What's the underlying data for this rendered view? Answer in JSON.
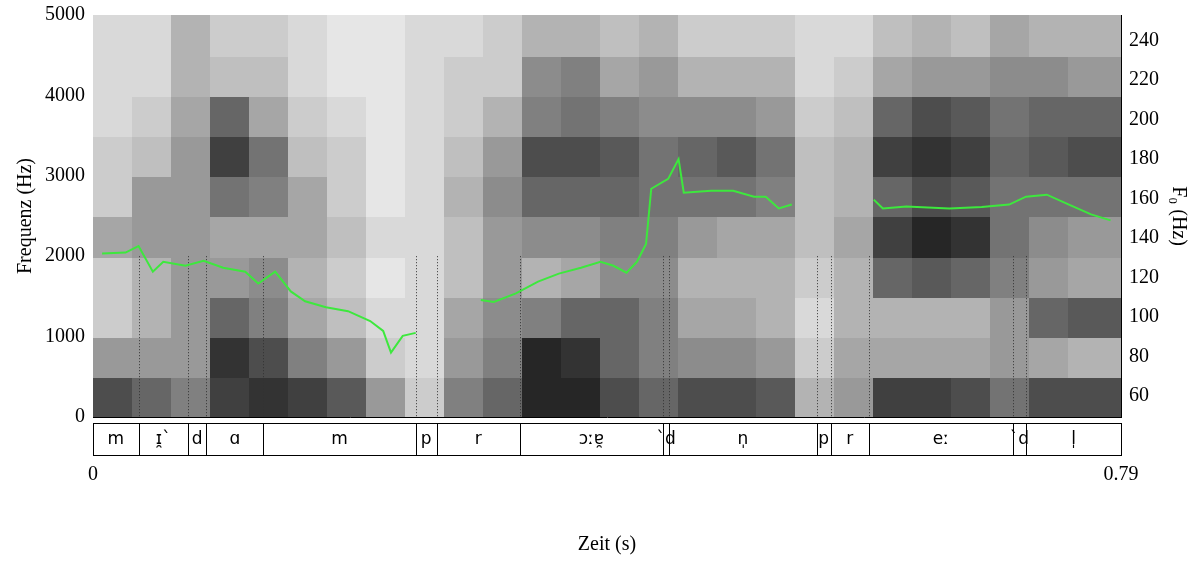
{
  "chart_data": {
    "type": "line",
    "x_label": "Zeit (s)",
    "y_label": "Frequenz (Hz)",
    "y2_label": "F₀ (Hz)",
    "xlim": [
      0,
      0.79
    ],
    "xticks": [
      0,
      0.79
    ],
    "ylim": [
      0,
      5000
    ],
    "yticks": [
      0,
      1000,
      2000,
      3000,
      4000,
      5000
    ],
    "y2lim": [
      49.4,
      253
    ],
    "y2ticks": [
      60,
      80,
      100,
      120,
      140,
      160,
      180,
      200,
      220,
      240
    ],
    "grid": false,
    "x": [
      0.007,
      0.025,
      0.035,
      0.046,
      0.054,
      0.071,
      0.085,
      0.1,
      0.117,
      0.127,
      0.14,
      0.152,
      0.163,
      0.179,
      0.196,
      0.213,
      0.223,
      0.229,
      0.238,
      0.248,
      0.27,
      0.298,
      0.308,
      0.325,
      0.342,
      0.358,
      0.375,
      0.39,
      0.4,
      0.41,
      0.418,
      0.425,
      0.429,
      0.442,
      0.45,
      0.454,
      0.475,
      0.492,
      0.508,
      0.517,
      0.527,
      0.537,
      0.57,
      0.6,
      0.607,
      0.625,
      0.658,
      0.683,
      0.704,
      0.717,
      0.733,
      0.75,
      0.767,
      0.782
    ],
    "series": [
      {
        "color": "#3de83d",
        "axis": "y2",
        "values": [
          132.2,
          132.7,
          136,
          123,
          128,
          126,
          128.5,
          125,
          123,
          117,
          123,
          113,
          108,
          105,
          103,
          98,
          93,
          82,
          90.5,
          92,
          null,
          108.6,
          107.7,
          112,
          118,
          122,
          125,
          128,
          126,
          122.5,
          128,
          137,
          165,
          170,
          180,
          163,
          164,
          164,
          161,
          161,
          155,
          157,
          null,
          159.5,
          155,
          156,
          155,
          155.7,
          157,
          161,
          162,
          157,
          152,
          149
        ]
      }
    ],
    "segments": {
      "labels": [
        "m",
        "ɪ̯`",
        "d",
        "ɑ",
        "m",
        "p",
        "r",
        "ɔːɐ̯",
        "`d",
        "n̩",
        "p",
        "r",
        "eː",
        "`d",
        "l̩"
      ],
      "boundaries": [
        0,
        0.035,
        0.073,
        0.087,
        0.131,
        0.248,
        0.264,
        0.328,
        0.438,
        0.443,
        0.556,
        0.567,
        0.596,
        0.707,
        0.717,
        0.79
      ]
    },
    "spectrogram": {
      "t_edges": [
        0,
        0.03,
        0.06,
        0.09,
        0.12,
        0.15,
        0.18,
        0.21,
        0.24,
        0.27,
        0.3,
        0.33,
        0.36,
        0.39,
        0.42,
        0.45,
        0.48,
        0.51,
        0.54,
        0.57,
        0.6,
        0.63,
        0.66,
        0.69,
        0.72,
        0.75,
        0.79
      ],
      "f_edges": [
        0,
        500,
        1000,
        1500,
        2000,
        2500,
        3000,
        3500,
        4000,
        4500,
        5000
      ],
      "intensity": [
        [
          0.7,
          0.4,
          0.2,
          0.2,
          0.35,
          0.2,
          0.2,
          0.15,
          0.15,
          0.15
        ],
        [
          0.6,
          0.4,
          0.3,
          0.3,
          0.4,
          0.4,
          0.25,
          0.2,
          0.15,
          0.15
        ],
        [
          0.5,
          0.4,
          0.4,
          0.4,
          0.4,
          0.4,
          0.4,
          0.35,
          0.3,
          0.3
        ],
        [
          0.75,
          0.8,
          0.6,
          0.4,
          0.35,
          0.55,
          0.75,
          0.6,
          0.25,
          0.2
        ],
        [
          0.8,
          0.7,
          0.5,
          0.45,
          0.35,
          0.5,
          0.55,
          0.35,
          0.25,
          0.2
        ],
        [
          0.75,
          0.5,
          0.35,
          0.3,
          0.35,
          0.35,
          0.25,
          0.2,
          0.15,
          0.15
        ],
        [
          0.65,
          0.4,
          0.25,
          0.2,
          0.25,
          0.2,
          0.2,
          0.15,
          0.1,
          0.1
        ],
        [
          0.4,
          0.2,
          0.15,
          0.1,
          0.15,
          0.1,
          0.1,
          0.1,
          0.1,
          0.1
        ],
        [
          0.2,
          0.15,
          0.15,
          0.15,
          0.15,
          0.15,
          0.15,
          0.15,
          0.15,
          0.15
        ],
        [
          0.5,
          0.4,
          0.35,
          0.25,
          0.25,
          0.3,
          0.25,
          0.2,
          0.2,
          0.15
        ],
        [
          0.6,
          0.5,
          0.45,
          0.4,
          0.4,
          0.45,
          0.4,
          0.3,
          0.2,
          0.2
        ],
        [
          0.85,
          0.85,
          0.5,
          0.3,
          0.45,
          0.6,
          0.7,
          0.5,
          0.45,
          0.3
        ],
        [
          0.85,
          0.8,
          0.6,
          0.35,
          0.45,
          0.6,
          0.7,
          0.55,
          0.5,
          0.3
        ],
        [
          0.7,
          0.6,
          0.6,
          0.45,
          0.5,
          0.6,
          0.65,
          0.5,
          0.35,
          0.25
        ],
        [
          0.6,
          0.5,
          0.5,
          0.45,
          0.5,
          0.55,
          0.55,
          0.45,
          0.4,
          0.3
        ],
        [
          0.7,
          0.45,
          0.35,
          0.3,
          0.4,
          0.55,
          0.6,
          0.45,
          0.3,
          0.2
        ],
        [
          0.7,
          0.45,
          0.35,
          0.3,
          0.35,
          0.55,
          0.65,
          0.45,
          0.3,
          0.2
        ],
        [
          0.65,
          0.4,
          0.3,
          0.3,
          0.35,
          0.5,
          0.55,
          0.4,
          0.3,
          0.2
        ],
        [
          0.3,
          0.2,
          0.15,
          0.2,
          0.25,
          0.25,
          0.25,
          0.2,
          0.15,
          0.15
        ],
        [
          0.4,
          0.35,
          0.3,
          0.3,
          0.35,
          0.3,
          0.3,
          0.25,
          0.2,
          0.15
        ],
        [
          0.75,
          0.35,
          0.3,
          0.6,
          0.75,
          0.6,
          0.75,
          0.6,
          0.35,
          0.25
        ],
        [
          0.75,
          0.35,
          0.3,
          0.65,
          0.85,
          0.7,
          0.8,
          0.7,
          0.4,
          0.3
        ],
        [
          0.7,
          0.35,
          0.3,
          0.6,
          0.8,
          0.65,
          0.75,
          0.65,
          0.4,
          0.25
        ],
        [
          0.55,
          0.4,
          0.4,
          0.5,
          0.55,
          0.55,
          0.6,
          0.55,
          0.45,
          0.35
        ],
        [
          0.7,
          0.35,
          0.6,
          0.4,
          0.45,
          0.55,
          0.65,
          0.6,
          0.45,
          0.3
        ],
        [
          0.7,
          0.3,
          0.65,
          0.35,
          0.4,
          0.55,
          0.7,
          0.6,
          0.4,
          0.3
        ]
      ]
    }
  }
}
